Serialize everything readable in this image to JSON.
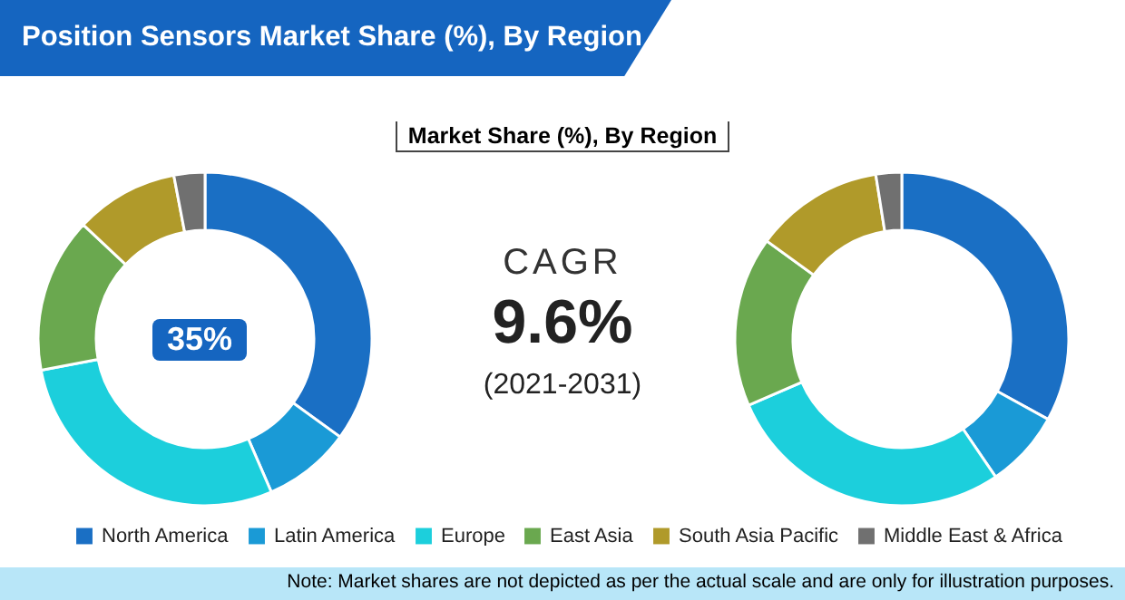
{
  "chart_data": [
    {
      "type": "donut",
      "title": "Position Sensors Market Share (%), By Region",
      "subtitle": "Market Share (%), By Region",
      "categories": [
        "North America",
        "Latin America",
        "Europe",
        "East Asia",
        "South Asia Pacific",
        "Middle East & Africa"
      ],
      "colors": [
        "#1a6fc4",
        "#1a9ad6",
        "#1ccfdc",
        "#6aa84f",
        "#b09a2a",
        "#707070"
      ],
      "legend": "bottom",
      "annotations": [
        "35%",
        "Note: Market shares are not depicted as per the actual scale and are only for illustration purposes."
      ],
      "series": [
        {
          "values": [
            35,
            8.5,
            28.5,
            15,
            10,
            3
          ]
        },
        {
          "values": [
            33,
            7.5,
            28,
            16.5,
            12.5,
            2.5
          ]
        }
      ]
    },
    {
      "type": "other",
      "title": "CAGR",
      "annotations": [
        "9.6%",
        "(2021-2031)"
      ]
    }
  ]
}
